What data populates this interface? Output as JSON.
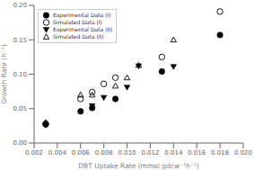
{
  "chart_data": {
    "type": "scatter",
    "xlabel": "DBT Uptake Rate (mmol gdcw⁻¹h⁻¹)",
    "ylabel": "Growth Rate (h⁻¹)",
    "xlim": [
      0.002,
      0.02
    ],
    "ylim": [
      0.0,
      0.2
    ],
    "xticks": [
      0.002,
      0.004,
      0.006,
      0.008,
      {
        "value": 0.01,
        "label": "0.010"
      },
      0.012,
      0.014,
      0.016,
      0.018,
      {
        "value": 0.02,
        "label": "0.020"
      }
    ],
    "yticks": [
      {
        "value": 0.0,
        "label": "0.00"
      },
      0.05,
      {
        "value": 0.1,
        "label": "0.10"
      },
      0.15,
      {
        "value": 0.2,
        "label": "0.20"
      }
    ],
    "grid": false,
    "legend": "upper left",
    "series": [
      {
        "name": "Experimental Data (I)",
        "color": "#000000",
        "marker": "circle",
        "x": [
          0.003,
          0.006,
          0.007,
          0.009,
          0.013,
          0.018
        ],
        "values": [
          0.027,
          0.046,
          0.051,
          0.064,
          0.104,
          0.157
        ]
      },
      {
        "name": "Simulated Data (I)",
        "color": "#000000",
        "marker": "circle-open",
        "x": [
          0.003,
          0.006,
          0.007,
          0.008,
          0.009,
          0.013,
          0.018
        ],
        "values": [
          0.028,
          0.064,
          0.074,
          0.086,
          0.095,
          0.125,
          0.191
        ]
      },
      {
        "name": "Experimental Data (II)",
        "color": "#000000",
        "marker": "triangle-down",
        "x": [
          0.003,
          0.007,
          0.008,
          0.01,
          0.011,
          0.014
        ],
        "values": [
          0.026,
          0.054,
          0.066,
          0.081,
          0.112,
          0.111
        ]
      },
      {
        "name": "Simulated Data (II)",
        "color": "#000000",
        "marker": "triangle-up-open",
        "x": [
          0.003,
          0.006,
          0.007,
          0.009,
          0.01,
          0.011,
          0.014
        ],
        "values": [
          0.03,
          0.07,
          0.07,
          0.083,
          0.095,
          0.113,
          0.15
        ]
      }
    ]
  }
}
